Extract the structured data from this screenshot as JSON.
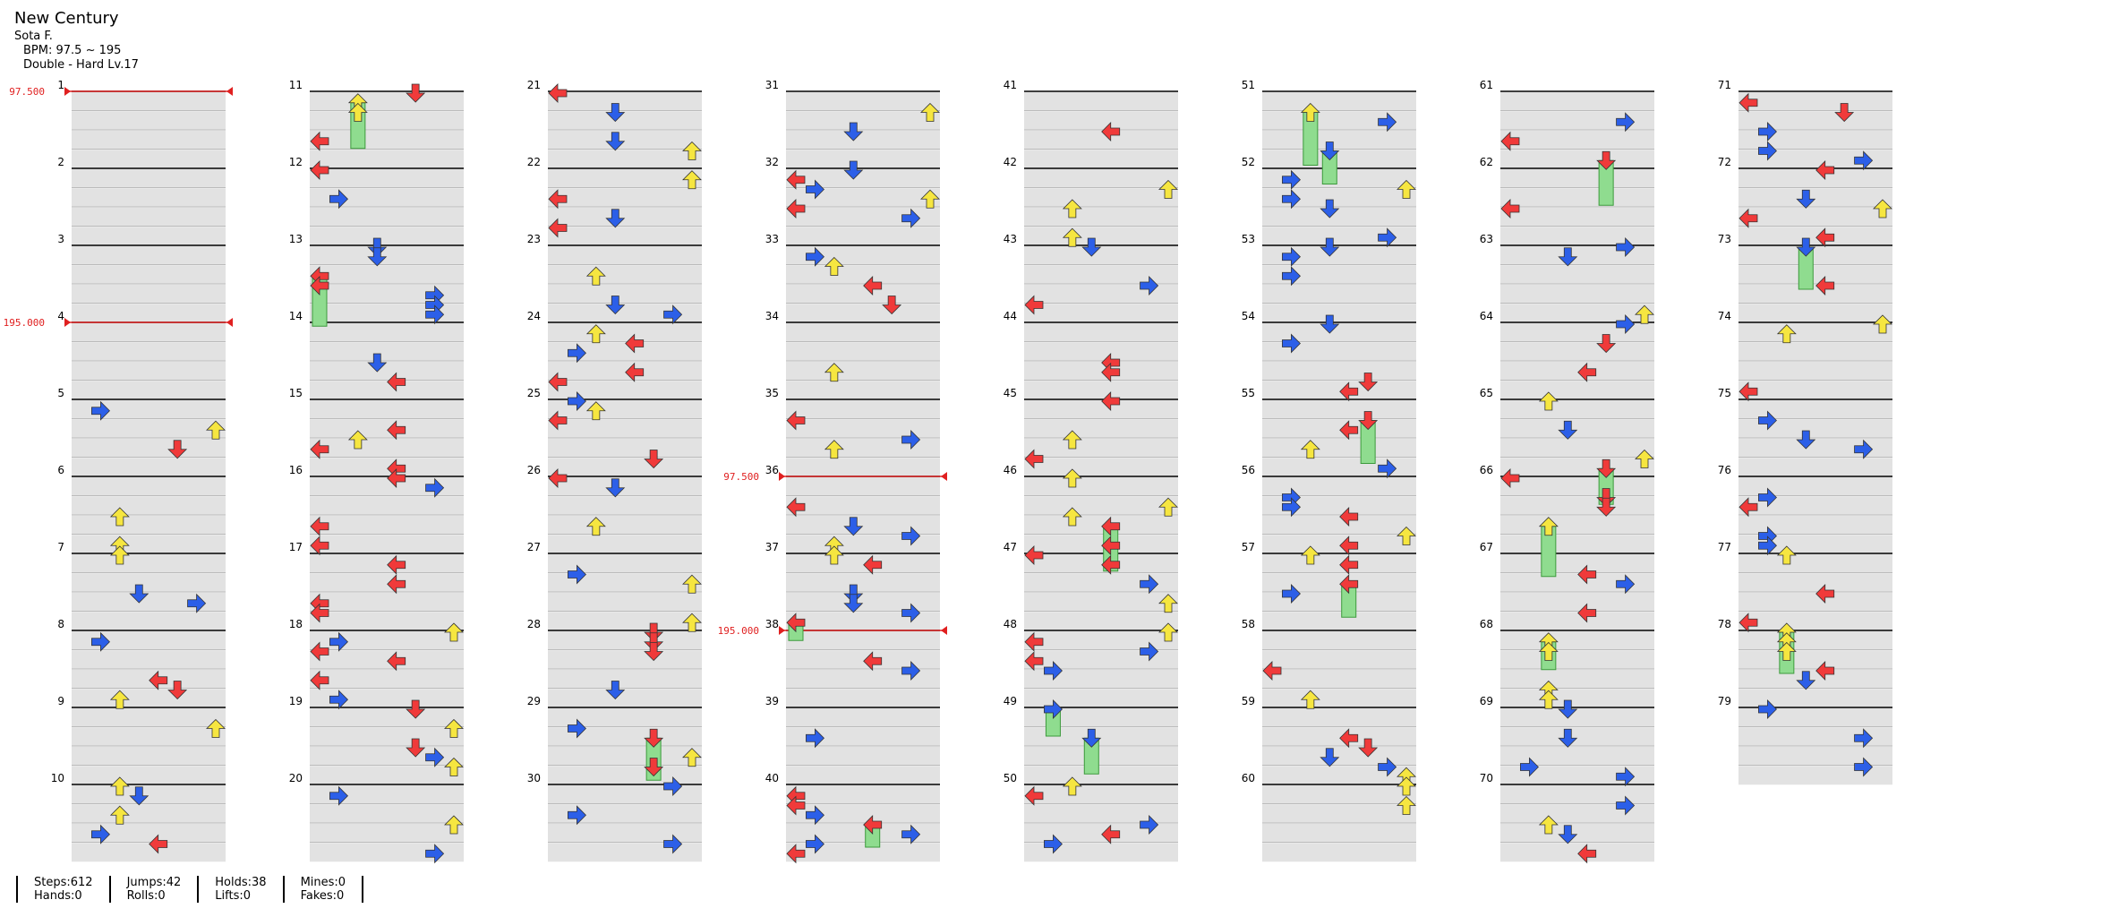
{
  "song": {
    "title": "New Century",
    "artist": "Sota F.",
    "bpm_text": "BPM: 97.5 ~ 195",
    "chart_text": "Double - Hard Lv.17"
  },
  "colors": {
    "red": "#f03a3a",
    "blue": "#2c5fe8",
    "yellow": "#f6e640",
    "green": "#8fdc8f",
    "bpm_marker": "#e02020"
  },
  "measures": [
    "1",
    "2",
    "3",
    "4",
    "5",
    "6",
    "7",
    "8",
    "9",
    "10",
    "11",
    "12",
    "13",
    "14",
    "15",
    "16",
    "17",
    "18",
    "19",
    "20",
    "21",
    "22",
    "23",
    "24",
    "25",
    "26",
    "27",
    "28",
    "29",
    "30",
    "31",
    "32",
    "33",
    "34",
    "35",
    "36",
    "37",
    "38",
    "39",
    "40",
    "41",
    "42",
    "43",
    "44",
    "45",
    "46",
    "47",
    "48",
    "49",
    "50",
    "51",
    "52",
    "53",
    "54",
    "55",
    "56",
    "57",
    "58",
    "59",
    "60",
    "61",
    "62",
    "63",
    "64",
    "65",
    "66",
    "67",
    "68",
    "69",
    "70",
    "71",
    "72",
    "73",
    "74",
    "75",
    "76",
    "77",
    "78",
    "79"
  ],
  "bpm_changes": [
    {
      "measure": 1,
      "label": "97.500"
    },
    {
      "measure": 4,
      "label": "195.000"
    },
    {
      "measure": 36,
      "label": "97.500"
    },
    {
      "measure": 38,
      "label": "195.000"
    }
  ],
  "stats": {
    "steps": "Steps:612",
    "hands": "Hands:0",
    "jumps": "Jumps:42",
    "rolls": "Rolls:0",
    "holds": "Holds:38",
    "lifts": "Lifts:0",
    "mines": "Mines:0",
    "fakes": "Fakes:0"
  }
}
